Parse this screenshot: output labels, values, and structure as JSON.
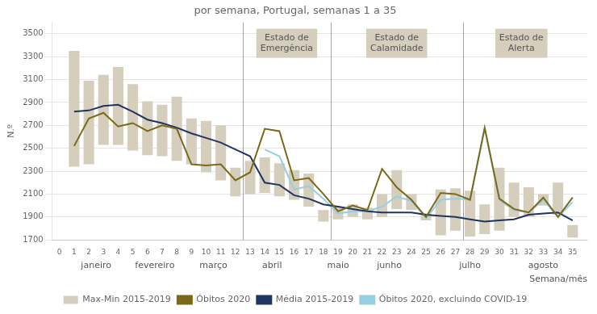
{
  "chart_data": {
    "type": "bar",
    "title": "por semana, Portugal, semanas 1 a 35",
    "ylabel": "N.º",
    "xlabel": "Semana/mês",
    "x": [
      1,
      2,
      3,
      4,
      5,
      6,
      7,
      8,
      9,
      10,
      11,
      12,
      13,
      14,
      15,
      16,
      17,
      18,
      19,
      20,
      21,
      22,
      23,
      24,
      25,
      26,
      27,
      28,
      29,
      30,
      31,
      32,
      33,
      34,
      35
    ],
    "xlim": [
      -0.5,
      36.0
    ],
    "xticks": [
      0,
      1,
      2,
      3,
      4,
      5,
      6,
      7,
      8,
      9,
      10,
      11,
      12,
      13,
      14,
      15,
      16,
      17,
      18,
      19,
      20,
      21,
      22,
      23,
      24,
      25,
      26,
      27,
      28,
      29,
      30,
      31,
      32,
      33,
      34,
      35
    ],
    "ylim": [
      1700,
      3600
    ],
    "yticks": [
      1700,
      1900,
      2100,
      2300,
      2500,
      2700,
      2900,
      3100,
      3300,
      3500
    ],
    "grid": true,
    "legend": "bottom",
    "series": [
      {
        "name": "Max-Min 2015-2019",
        "type": "bar",
        "color": "#d5cebc",
        "values": [
          [
            2340,
            3350
          ],
          [
            2360,
            3090
          ],
          [
            2530,
            3140
          ],
          [
            2530,
            3210
          ],
          [
            2480,
            3060
          ],
          [
            2440,
            2910
          ],
          [
            2430,
            2880
          ],
          [
            2390,
            2950
          ],
          [
            2360,
            2760
          ],
          [
            2290,
            2740
          ],
          [
            2220,
            2700
          ],
          [
            2080,
            2330
          ],
          [
            2100,
            2390
          ],
          [
            2110,
            2420
          ],
          [
            2080,
            2370
          ],
          [
            2050,
            2310
          ],
          [
            1990,
            2280
          ],
          [
            1860,
            1960
          ],
          [
            1880,
            1990
          ],
          [
            1900,
            2010
          ],
          [
            1880,
            1980
          ],
          [
            1900,
            2100
          ],
          [
            1970,
            2310
          ],
          [
            1960,
            2100
          ],
          [
            1870,
            1930
          ],
          [
            1740,
            2140
          ],
          [
            1780,
            2150
          ],
          [
            1730,
            2130
          ],
          [
            1750,
            2010
          ],
          [
            1780,
            2330
          ],
          [
            1900,
            2200
          ],
          [
            1900,
            2160
          ],
          [
            2000,
            2100
          ],
          [
            1920,
            2200
          ],
          [
            1720,
            1830
          ]
        ]
      },
      {
        "name": "Óbitos 2020",
        "type": "line",
        "color": "#7a6918",
        "values": [
          2520,
          2760,
          2810,
          2690,
          2720,
          2650,
          2700,
          2670,
          2360,
          2350,
          2360,
          2220,
          2290,
          2670,
          2650,
          2220,
          2240,
          2100,
          1950,
          2000,
          1960,
          2320,
          2160,
          2050,
          1900,
          2110,
          2100,
          2050,
          2680,
          2060,
          1970,
          1940,
          2070,
          1900,
          2070
        ]
      },
      {
        "name": "Média 2015-2019",
        "type": "line",
        "color": "#1e3461",
        "values": [
          2820,
          2830,
          2870,
          2880,
          2820,
          2750,
          2720,
          2680,
          2630,
          2590,
          2550,
          2490,
          2430,
          2200,
          2180,
          2090,
          2060,
          2010,
          1990,
          1970,
          1950,
          1940,
          1940,
          1940,
          1920,
          1910,
          1900,
          1880,
          1860,
          1870,
          1880,
          1920,
          1930,
          1940,
          1870
        ]
      },
      {
        "name": "Óbitos 2020, excluindo COVID-19",
        "type": "line",
        "color": "#96cfe0",
        "values": [
          null,
          null,
          null,
          null,
          null,
          null,
          null,
          null,
          null,
          null,
          null,
          null,
          null,
          2490,
          2430,
          2140,
          2170,
          2060,
          1930,
          1950,
          1950,
          1990,
          2080,
          2040,
          1890,
          2050,
          2060,
          2050,
          2670,
          2050,
          1960,
          1940,
          2050,
          1900,
          2030
        ]
      }
    ],
    "regions": [
      {
        "label": "Estado de\nEmergência",
        "start": 12.5,
        "end": 18.5,
        "color": "#d5cebc"
      },
      {
        "label": "Estado de\nCalamidade",
        "start": 18.5,
        "end": 27.5,
        "color": "#d5cebc"
      },
      {
        "label": "Estado de\nAlerta",
        "start": 27.5,
        "end": 35.5,
        "color": "#d5cebc"
      }
    ],
    "annotations": [
      {
        "text": "janeiro",
        "x": 2.5
      },
      {
        "text": "fevereiro",
        "x": 6.5
      },
      {
        "text": "março",
        "x": 10.5
      },
      {
        "text": "abril",
        "x": 14.5
      },
      {
        "text": "maio",
        "x": 19.0
      },
      {
        "text": "junho",
        "x": 22.5
      },
      {
        "text": "julho",
        "x": 28.0
      },
      {
        "text": "agosto",
        "x": 33.0
      }
    ]
  }
}
